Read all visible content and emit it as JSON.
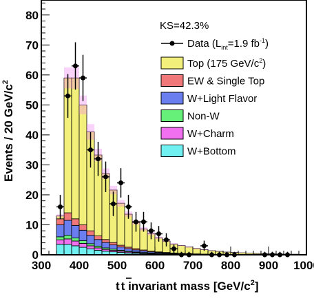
{
  "chart_data": {
    "type": "bar",
    "subtype": "stacked-histogram-with-data-points",
    "xlabel_main": "t",
    "xlabel_bar": "t",
    "xlabel_rest": " invariant mass [GeV/c",
    "xlabel_sup": "2",
    "xlabel_end": "]",
    "ylabel_main": "Events / 20 GeV/c",
    "ylabel_sup": "2",
    "xlim": [
      300,
      1000
    ],
    "ylim": [
      0,
      85
    ],
    "x_ticks": [
      300,
      400,
      500,
      600,
      700,
      800,
      900,
      1000
    ],
    "y_ticks": [
      0,
      10,
      20,
      30,
      40,
      50,
      60,
      70,
      80
    ],
    "bin_width": 20,
    "bin_edges_start": 340,
    "annotation": "KS=42.3%",
    "colors": {
      "top": "#f2f07a",
      "ew_single_top": "#f07878",
      "w_light": "#6a7ef0",
      "non_w": "#66f07a",
      "w_charm": "#f070f0",
      "w_bottom": "#70f0f0",
      "uncertainty": "#f080f0"
    },
    "legend": {
      "data_label": "Data (L",
      "data_sub": "int",
      "data_rest": "=1.9 fb",
      "data_sup": "-1",
      "data_end": ")",
      "entries": [
        {
          "key": "top",
          "label_main": "Top (175 GeV/c",
          "label_sup": "2",
          "label_end": ")"
        },
        {
          "key": "ew_single_top",
          "label_main": "EW & Single Top",
          "label_sup": "",
          "label_end": ""
        },
        {
          "key": "w_light",
          "label_main": "W+Light Flavor",
          "label_sup": "",
          "label_end": ""
        },
        {
          "key": "non_w",
          "label_main": "Non-W",
          "label_sup": "",
          "label_end": ""
        },
        {
          "key": "w_charm",
          "label_main": "W+Charm",
          "label_sup": "",
          "label_end": ""
        },
        {
          "key": "w_bottom",
          "label_main": "W+Bottom",
          "label_sup": "",
          "label_end": ""
        }
      ]
    },
    "stack_order": [
      "w_bottom",
      "w_charm",
      "non_w",
      "w_light",
      "ew_single_top",
      "top"
    ],
    "series": [
      {
        "key": "w_bottom",
        "values": [
          3.5,
          3.5,
          3.0,
          2.5,
          2.0,
          1.5,
          1.2,
          1.0,
          0.8,
          0.6,
          0.5,
          0.4,
          0.3,
          0.25,
          0.2,
          0.15,
          0.12,
          0.1,
          0.08,
          0.06,
          0.05,
          0.04,
          0.03,
          0.02,
          0.02,
          0.01,
          0.01,
          0.01,
          0.01,
          0.0,
          0.0,
          0.0,
          0.0
        ]
      },
      {
        "key": "w_charm",
        "values": [
          1.5,
          1.8,
          1.6,
          1.3,
          1.0,
          0.8,
          0.6,
          0.5,
          0.4,
          0.3,
          0.25,
          0.2,
          0.15,
          0.12,
          0.1,
          0.08,
          0.06,
          0.05,
          0.04,
          0.03,
          0.02,
          0.02,
          0.01,
          0.01,
          0.01,
          0.0,
          0.0,
          0.0,
          0.0,
          0.0,
          0.0,
          0.0,
          0.0
        ]
      },
      {
        "key": "non_w",
        "values": [
          1.0,
          1.2,
          1.0,
          0.9,
          0.7,
          0.6,
          0.5,
          0.4,
          0.3,
          0.25,
          0.2,
          0.15,
          0.12,
          0.1,
          0.08,
          0.06,
          0.05,
          0.04,
          0.03,
          0.02,
          0.02,
          0.01,
          0.01,
          0.01,
          0.0,
          0.0,
          0.0,
          0.0,
          0.0,
          0.0,
          0.0,
          0.0,
          0.0
        ]
      },
      {
        "key": "w_light",
        "values": [
          4.0,
          5.0,
          4.2,
          3.5,
          2.8,
          2.2,
          1.8,
          1.4,
          1.1,
          0.9,
          0.7,
          0.55,
          0.4,
          0.3,
          0.25,
          0.2,
          0.15,
          0.12,
          0.1,
          0.08,
          0.06,
          0.05,
          0.04,
          0.03,
          0.02,
          0.02,
          0.01,
          0.01,
          0.01,
          0.01,
          0.0,
          0.0,
          0.0
        ]
      },
      {
        "key": "ew_single_top",
        "values": [
          2.0,
          2.5,
          2.2,
          1.8,
          1.5,
          1.2,
          1.0,
          0.8,
          0.6,
          0.5,
          0.4,
          0.3,
          0.25,
          0.2,
          0.15,
          0.12,
          0.1,
          0.08,
          0.06,
          0.05,
          0.04,
          0.03,
          0.02,
          0.02,
          0.01,
          0.01,
          0.01,
          0.0,
          0.0,
          0.0,
          0.0,
          0.0,
          0.0
        ]
      },
      {
        "key": "top",
        "values": [
          1.0,
          45.0,
          47.0,
          40.0,
          33.0,
          27.0,
          22.0,
          17.5,
          14.0,
          11.0,
          8.7,
          7.0,
          5.8,
          4.7,
          3.8,
          3.0,
          2.6,
          2.2,
          1.8,
          1.5,
          1.2,
          1.0,
          0.8,
          0.7,
          0.6,
          0.5,
          0.4,
          0.35,
          0.3,
          0.25,
          0.2,
          0.2,
          0.15
        ]
      }
    ],
    "band_halfwidth": [
      0.5,
      3.5,
      3.6,
      3.1,
      2.6,
      2.1,
      1.7,
      1.4,
      1.1,
      0.9,
      0.7,
      0.6,
      0.5,
      0.4,
      0.3,
      0.25,
      0.2,
      0.18,
      0.15,
      0.12,
      0.1,
      0.08,
      0.07,
      0.06,
      0.05,
      0.04,
      0.03,
      0.03,
      0.02,
      0.02,
      0.02,
      0.02,
      0.01
    ],
    "data_points": [
      {
        "x": 350,
        "y": 16,
        "err": 4.0
      },
      {
        "x": 370,
        "y": 53,
        "err": 7.3
      },
      {
        "x": 390,
        "y": 63,
        "err": 7.9
      },
      {
        "x": 410,
        "y": 59,
        "err": 7.7
      },
      {
        "x": 430,
        "y": 35,
        "err": 5.9
      },
      {
        "x": 450,
        "y": 32,
        "err": 5.7
      },
      {
        "x": 470,
        "y": 26,
        "err": 5.1
      },
      {
        "x": 490,
        "y": 17,
        "err": 4.1
      },
      {
        "x": 510,
        "y": 24,
        "err": 4.9
      },
      {
        "x": 530,
        "y": 16,
        "err": 4.0
      },
      {
        "x": 550,
        "y": 11,
        "err": 3.3
      },
      {
        "x": 570,
        "y": 11,
        "err": 3.3
      },
      {
        "x": 590,
        "y": 8,
        "err": 2.8
      },
      {
        "x": 610,
        "y": 7,
        "err": 2.6
      },
      {
        "x": 630,
        "y": 5,
        "err": 2.2
      },
      {
        "x": 650,
        "y": 2,
        "err": 1.4
      },
      {
        "x": 670,
        "y": 0,
        "err": 1.0
      },
      {
        "x": 690,
        "y": 0,
        "err": 1.0
      },
      {
        "x": 730,
        "y": 3,
        "err": 1.7
      },
      {
        "x": 750,
        "y": 0,
        "err": 1.0
      },
      {
        "x": 770,
        "y": 0,
        "err": 1.0
      },
      {
        "x": 790,
        "y": 0,
        "err": 1.0
      },
      {
        "x": 810,
        "y": 0,
        "err": 1.0
      },
      {
        "x": 890,
        "y": 0,
        "err": 1.0
      },
      {
        "x": 910,
        "y": 0,
        "err": 1.0
      },
      {
        "x": 930,
        "y": 0,
        "err": 1.0
      },
      {
        "x": 950,
        "y": 0,
        "err": 1.0
      }
    ]
  }
}
